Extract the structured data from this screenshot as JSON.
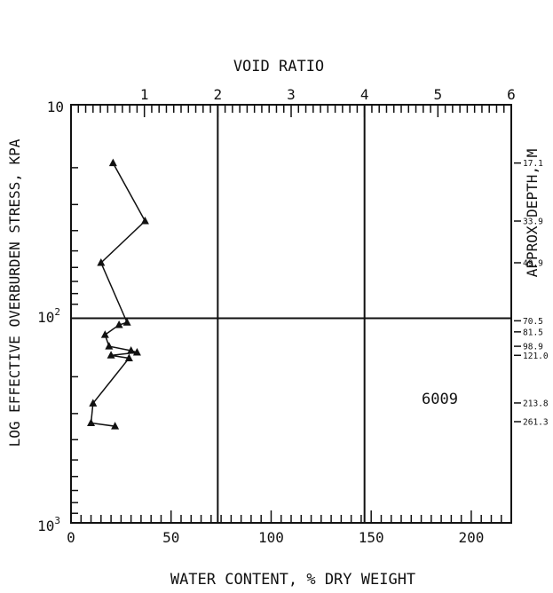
{
  "chart_data": {
    "type": "scatter",
    "title": "",
    "top_axis": {
      "label": "VOID RATIO",
      "range": [
        0,
        6
      ],
      "tick_labels": [
        "1",
        "2",
        "3",
        "4",
        "5",
        "6"
      ]
    },
    "bottom_axis": {
      "label": "WATER CONTENT, % DRY WEIGHT",
      "range": [
        0,
        220
      ],
      "tick_labels": [
        "0",
        "50",
        "100",
        "150",
        "200"
      ]
    },
    "left_axis": {
      "label": "LOG EFFECTIVE OVERBURDEN STRESS, KPA",
      "scale": "log",
      "inverted": true,
      "range": [
        10,
        1000
      ],
      "tick_label_ten": "10",
      "tick_label_hundred_base": "10",
      "tick_label_hundred_exp": "2",
      "tick_label_thousand_base": "10",
      "tick_label_thousand_exp": "3"
    },
    "right_axis": {
      "label": "APPROX DEPTH, M",
      "depth_labels": [
        {
          "text": "17.1",
          "stress": 19
        },
        {
          "text": "33.9",
          "stress": 36
        },
        {
          "text": "49.9",
          "stress": 57
        },
        {
          "text": "70.5",
          "stress": 108
        },
        {
          "text": "81.5",
          "stress": 122
        },
        {
          "text": "98.9",
          "stress": 143
        },
        {
          "text": "121.0",
          "stress": 158
        },
        {
          "text": "213.8",
          "stress": 267
        },
        {
          "text": "261.3",
          "stress": 328
        }
      ]
    },
    "reference_line_stress": 105,
    "sample_label": "6009",
    "series": [
      {
        "points": [
          {
            "x": 21,
            "y": 19
          },
          {
            "x": 37,
            "y": 36
          },
          {
            "x": 15,
            "y": 57
          },
          {
            "x": 28,
            "y": 110
          },
          {
            "x": 24,
            "y": 113
          },
          {
            "x": 17,
            "y": 126
          },
          {
            "x": 19,
            "y": 143
          },
          {
            "x": 30,
            "y": 150
          },
          {
            "x": 33,
            "y": 153
          },
          {
            "x": 20,
            "y": 158
          },
          {
            "x": 29,
            "y": 163
          },
          {
            "x": 11,
            "y": 268
          },
          {
            "x": 10,
            "y": 333
          },
          {
            "x": 22,
            "y": 345
          }
        ]
      }
    ]
  }
}
